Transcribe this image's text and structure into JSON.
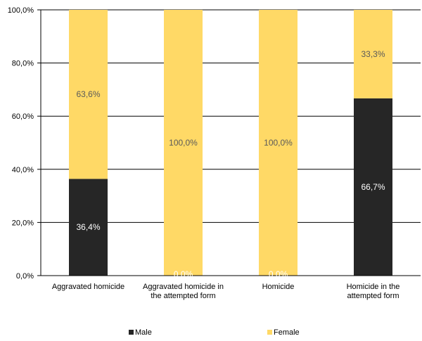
{
  "chart_data": {
    "type": "bar",
    "stacked": true,
    "categories": [
      [
        "Aggravated homicide"
      ],
      [
        "Aggravated homicide in",
        "the attempted form"
      ],
      [
        "Homicide"
      ],
      [
        "Homicide in the",
        "attempted form"
      ]
    ],
    "series": [
      {
        "name": "Male",
        "color": "#262626",
        "label_color": "#ffffff",
        "values": [
          36.4,
          0,
          0,
          66.7
        ],
        "labels": [
          "36,4%",
          "0,0%",
          "0,0%",
          "66,7%"
        ]
      },
      {
        "name": "Female",
        "color": "#FFD966",
        "label_color": "#595959",
        "values": [
          63.6,
          100,
          100,
          33.3
        ],
        "labels": [
          "63,6%",
          "100,0%",
          "100,0%",
          "33,3%"
        ]
      }
    ],
    "y_ticks": [
      0,
      20,
      40,
      60,
      80,
      100
    ],
    "y_tick_labels": [
      "0,0%",
      "20,0%",
      "40,0%",
      "60,0%",
      "80,0%",
      "100,0%"
    ],
    "ylim": [
      0,
      100
    ],
    "grid": true,
    "legend_position": "bottom",
    "title": "",
    "xlabel": "",
    "ylabel": ""
  }
}
